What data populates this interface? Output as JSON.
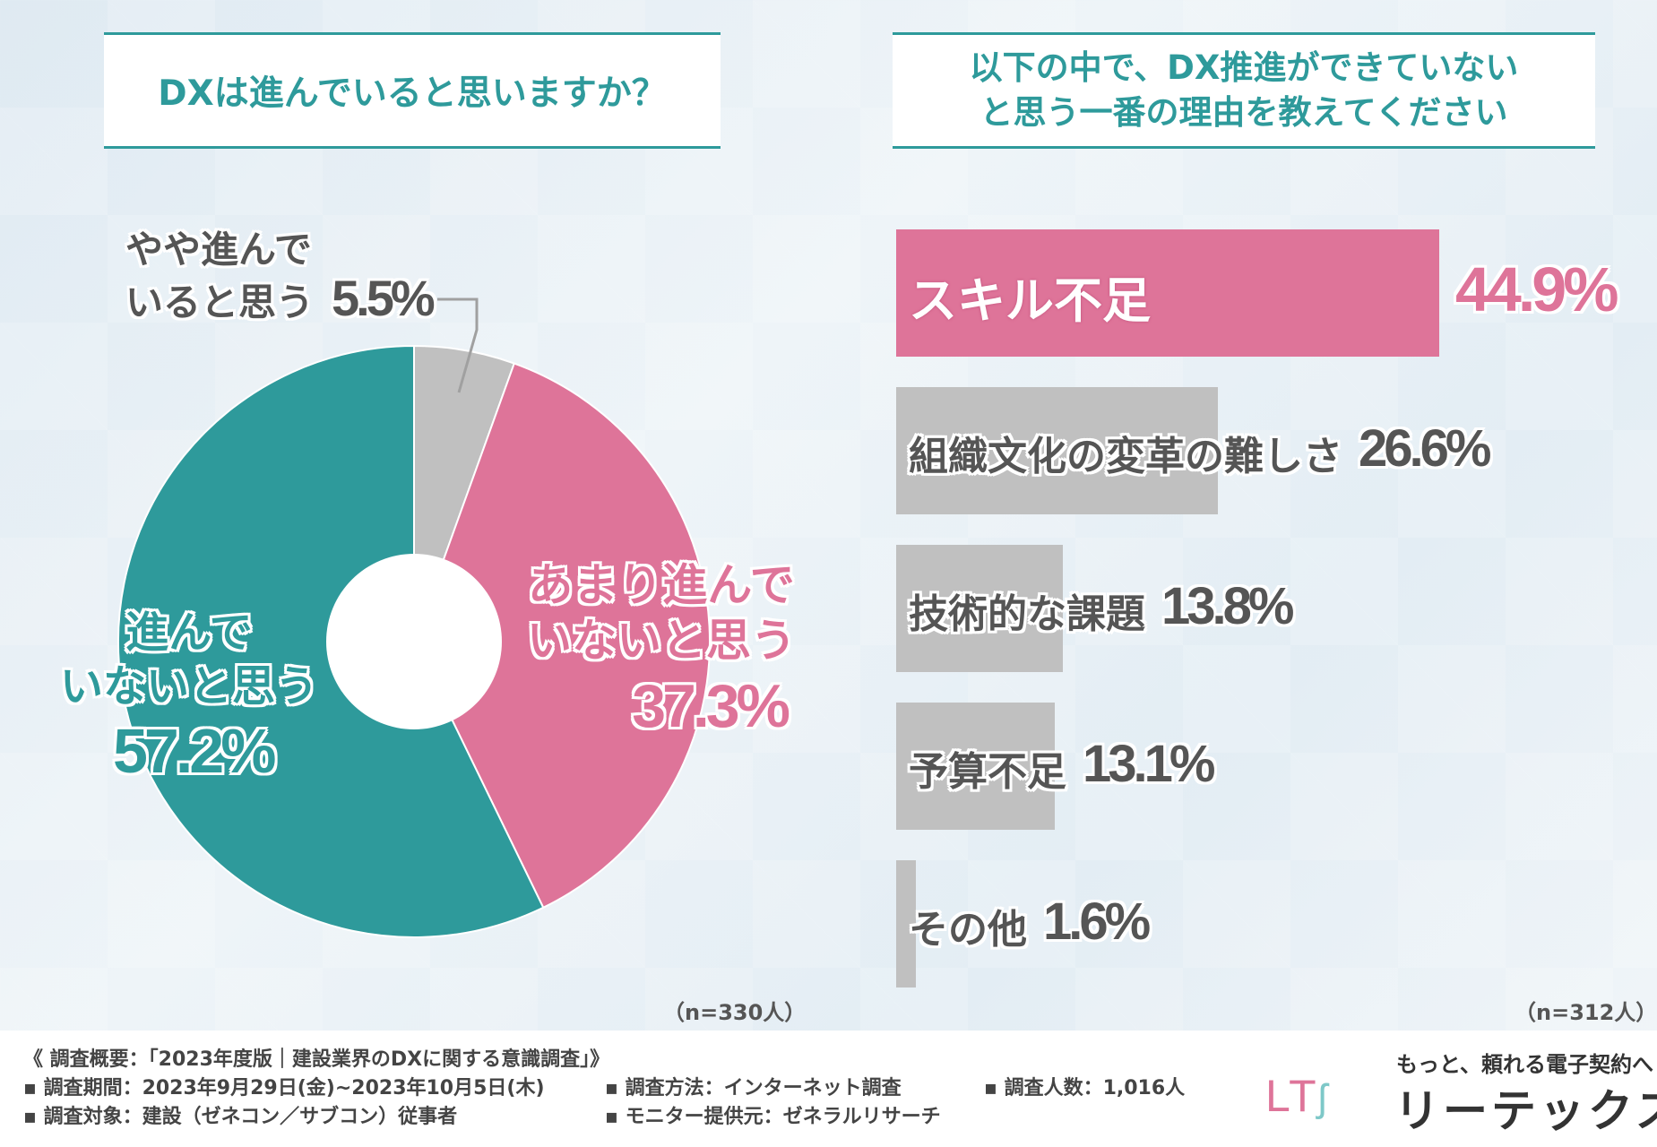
{
  "left": {
    "question": "DXは進んでいると思いますか？",
    "n_label": "（n=330人）"
  },
  "right": {
    "question_line1": "以下の中で、DX推進ができていない",
    "question_line2": "と思う一番の理由を教えてください",
    "n_label": "（n=312人）"
  },
  "chart_data": [
    {
      "type": "pie",
      "title": "DXは進んでいると思いますか？",
      "slices": [
        {
          "label_line1": "やや進んで",
          "label_line2": "いると思う",
          "value": 5.5,
          "display": "5.5%",
          "color": "#c0c0c0"
        },
        {
          "label_line1": "あまり進んで",
          "label_line2": "いないと思う",
          "value": 37.3,
          "display": "37.3%",
          "color": "#de7499"
        },
        {
          "label_line1": "進んで",
          "label_line2": "いないと思う",
          "value": 57.2,
          "display": "57.2%",
          "color": "#2e9a9b"
        }
      ]
    },
    {
      "type": "bar",
      "orientation": "horizontal",
      "title": "以下の中で、DX推進ができていないと思う一番の理由を教えてください",
      "categories": [
        "スキル不足",
        "組織文化の変革の難しさ",
        "技術的な課題",
        "予算不足",
        "その他"
      ],
      "values": [
        44.9,
        26.6,
        13.8,
        13.1,
        1.6
      ],
      "displays": [
        "44.9%",
        "26.6%",
        "13.8%",
        "13.1%",
        "1.6%"
      ],
      "colors": [
        "#de7499",
        "#c0c0c0",
        "#c0c0c0",
        "#c0c0c0",
        "#c0c0c0"
      ],
      "xlim": [
        0,
        44.9
      ]
    }
  ],
  "footer": {
    "overview": "《 調査概要：「2023年度版｜建設業界のDXに関する意識調査」》",
    "period": "▪ 調査期間：2023年9月29日(金)~2023年10月5日(木)",
    "method": "▪ 調査方法：インターネット調査",
    "count": "▪ 調査人数：1,016人",
    "target": "▪ 調査対象：建設（ゼネコン／サブコン）従事者",
    "provider": "▪ モニター提供元：ゼネラルリサーチ",
    "logo_text": "LT",
    "tagline": "もっと、頼れる電子契約へ",
    "brand": "リーテックス"
  }
}
